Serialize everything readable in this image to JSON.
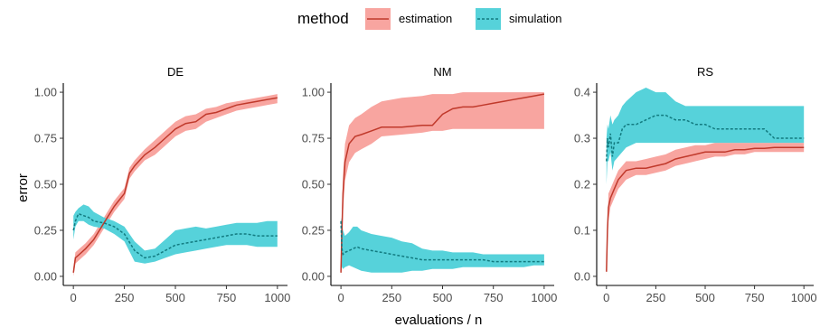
{
  "chart_data": {
    "type": "line",
    "ylabel": "error",
    "xlabel": "evaluations / n",
    "legend": {
      "title": "method",
      "placement": "top",
      "entries": [
        {
          "name": "estimation",
          "line_color": "#c0392b",
          "ribbon_color": "#f8a5a0",
          "dash": "solid"
        },
        {
          "name": "simulation",
          "line_color": "#127b80",
          "ribbon_color": "#56d2da",
          "dash": "dashed"
        }
      ]
    },
    "panels": [
      {
        "title": "DE",
        "xlim": [
          0,
          1000
        ],
        "ylim": [
          0,
          1.0
        ],
        "x_ticks": [
          0,
          250,
          500,
          750,
          1000
        ],
        "y_ticks": [
          0.0,
          0.25,
          0.5,
          0.75,
          1.0
        ],
        "y_tick_labels": [
          "0.00",
          "0.25",
          "0.50",
          "0.75",
          "1.00"
        ],
        "series": [
          {
            "name": "estimation",
            "x": [
              0,
              10,
              30,
              60,
              100,
              150,
              200,
              250,
              275,
              300,
              350,
              400,
              450,
              500,
              550,
              600,
              650,
              700,
              750,
              800,
              850,
              900,
              950,
              1000
            ],
            "y": [
              0.02,
              0.1,
              0.12,
              0.15,
              0.2,
              0.29,
              0.38,
              0.45,
              0.56,
              0.6,
              0.66,
              0.7,
              0.75,
              0.8,
              0.83,
              0.84,
              0.88,
              0.89,
              0.91,
              0.93,
              0.94,
              0.95,
              0.96,
              0.97
            ],
            "lower": [
              0.0,
              0.07,
              0.09,
              0.12,
              0.17,
              0.26,
              0.35,
              0.42,
              0.53,
              0.57,
              0.63,
              0.66,
              0.71,
              0.76,
              0.79,
              0.8,
              0.84,
              0.86,
              0.88,
              0.9,
              0.91,
              0.92,
              0.93,
              0.94
            ],
            "upper": [
              0.05,
              0.13,
              0.15,
              0.18,
              0.23,
              0.32,
              0.41,
              0.48,
              0.59,
              0.63,
              0.69,
              0.74,
              0.79,
              0.84,
              0.87,
              0.88,
              0.91,
              0.92,
              0.94,
              0.95,
              0.96,
              0.97,
              0.98,
              0.99
            ]
          },
          {
            "name": "simulation",
            "x": [
              0,
              10,
              25,
              50,
              75,
              100,
              150,
              200,
              250,
              300,
              350,
              400,
              450,
              500,
              550,
              600,
              650,
              700,
              750,
              800,
              850,
              900,
              950,
              1000
            ],
            "y": [
              0.25,
              0.3,
              0.34,
              0.33,
              0.32,
              0.3,
              0.29,
              0.27,
              0.23,
              0.14,
              0.1,
              0.11,
              0.14,
              0.17,
              0.18,
              0.19,
              0.2,
              0.21,
              0.22,
              0.23,
              0.23,
              0.22,
              0.22,
              0.22
            ],
            "lower": [
              0.2,
              0.27,
              0.3,
              0.3,
              0.28,
              0.27,
              0.26,
              0.23,
              0.19,
              0.08,
              0.07,
              0.08,
              0.1,
              0.12,
              0.13,
              0.14,
              0.15,
              0.16,
              0.17,
              0.17,
              0.17,
              0.16,
              0.16,
              0.16
            ],
            "upper": [
              0.33,
              0.35,
              0.37,
              0.39,
              0.38,
              0.35,
              0.32,
              0.3,
              0.27,
              0.19,
              0.14,
              0.15,
              0.2,
              0.25,
              0.26,
              0.27,
              0.26,
              0.27,
              0.28,
              0.29,
              0.29,
              0.29,
              0.3,
              0.3
            ]
          }
        ]
      },
      {
        "title": "NM",
        "xlim": [
          0,
          1000
        ],
        "ylim": [
          0,
          1.0
        ],
        "x_ticks": [
          0,
          250,
          500,
          750,
          1000
        ],
        "y_ticks": [
          0.0,
          0.25,
          0.5,
          0.75,
          1.0
        ],
        "y_tick_labels": [
          "0.00",
          "0.25",
          "0.50",
          "0.75",
          "1.00"
        ],
        "series": [
          {
            "name": "estimation",
            "x": [
              0,
              5,
              10,
              20,
              40,
              70,
              100,
              150,
              200,
              300,
              400,
              450,
              500,
              550,
              600,
              650,
              700,
              750,
              800,
              850,
              900,
              950,
              1000
            ],
            "y": [
              0.02,
              0.25,
              0.45,
              0.62,
              0.72,
              0.76,
              0.77,
              0.79,
              0.81,
              0.81,
              0.82,
              0.82,
              0.88,
              0.91,
              0.92,
              0.92,
              0.93,
              0.94,
              0.95,
              0.96,
              0.97,
              0.98,
              0.99
            ],
            "lower": [
              0.0,
              0.15,
              0.35,
              0.52,
              0.62,
              0.67,
              0.69,
              0.72,
              0.76,
              0.77,
              0.78,
              0.79,
              0.79,
              0.8,
              0.8,
              0.8,
              0.8,
              0.8,
              0.8,
              0.8,
              0.8,
              0.8,
              0.8
            ],
            "upper": [
              0.05,
              0.35,
              0.55,
              0.72,
              0.82,
              0.86,
              0.88,
              0.92,
              0.95,
              0.97,
              0.98,
              0.99,
              0.99,
              0.99,
              1.0,
              1.0,
              1.0,
              1.0,
              1.0,
              1.0,
              1.0,
              1.0,
              1.0
            ]
          },
          {
            "name": "simulation",
            "x": [
              0,
              5,
              10,
              20,
              40,
              60,
              80,
              100,
              150,
              200,
              250,
              300,
              350,
              400,
              450,
              500,
              550,
              600,
              650,
              700,
              750,
              800,
              850,
              900,
              950,
              1000
            ],
            "y": [
              0.3,
              0.15,
              0.12,
              0.13,
              0.14,
              0.15,
              0.16,
              0.15,
              0.14,
              0.13,
              0.12,
              0.11,
              0.1,
              0.09,
              0.09,
              0.09,
              0.09,
              0.09,
              0.09,
              0.09,
              0.08,
              0.08,
              0.08,
              0.08,
              0.08,
              0.08
            ],
            "lower": [
              0.1,
              0.05,
              0.04,
              0.05,
              0.06,
              0.05,
              0.04,
              0.03,
              0.02,
              0.02,
              0.02,
              0.02,
              0.03,
              0.03,
              0.04,
              0.04,
              0.04,
              0.05,
              0.05,
              0.05,
              0.05,
              0.05,
              0.05,
              0.05,
              0.06,
              0.06
            ],
            "upper": [
              0.32,
              0.28,
              0.25,
              0.22,
              0.24,
              0.27,
              0.27,
              0.25,
              0.23,
              0.22,
              0.21,
              0.19,
              0.18,
              0.15,
              0.14,
              0.14,
              0.13,
              0.13,
              0.13,
              0.12,
              0.12,
              0.12,
              0.12,
              0.12,
              0.12,
              0.12
            ]
          }
        ]
      },
      {
        "title": "RS",
        "xlim": [
          0,
          1000
        ],
        "ylim": [
          0,
          0.4
        ],
        "x_ticks": [
          0,
          250,
          500,
          750,
          1000
        ],
        "y_ticks": [
          0.0,
          0.1,
          0.2,
          0.3,
          0.4
        ],
        "y_tick_labels": [
          "0.0",
          "0.1",
          "0.2",
          "0.3",
          "0.4"
        ],
        "series": [
          {
            "name": "estimation",
            "x": [
              0,
              5,
              10,
              20,
              40,
              60,
              80,
              100,
              150,
              200,
              250,
              300,
              350,
              400,
              450,
              500,
              550,
              600,
              650,
              700,
              750,
              800,
              850,
              900,
              950,
              1000
            ],
            "y": [
              0.01,
              0.1,
              0.15,
              0.17,
              0.19,
              0.21,
              0.22,
              0.23,
              0.235,
              0.235,
              0.24,
              0.245,
              0.255,
              0.26,
              0.265,
              0.27,
              0.27,
              0.27,
              0.275,
              0.275,
              0.278,
              0.278,
              0.28,
              0.28,
              0.28,
              0.28
            ],
            "lower": [
              0.0,
              0.08,
              0.12,
              0.15,
              0.17,
              0.19,
              0.2,
              0.21,
              0.22,
              0.22,
              0.225,
              0.23,
              0.24,
              0.245,
              0.25,
              0.255,
              0.26,
              0.26,
              0.265,
              0.265,
              0.27,
              0.27,
              0.27,
              0.27,
              0.27,
              0.27
            ],
            "upper": [
              0.02,
              0.12,
              0.18,
              0.19,
              0.21,
              0.23,
              0.24,
              0.25,
              0.25,
              0.255,
              0.26,
              0.265,
              0.275,
              0.28,
              0.285,
              0.285,
              0.29,
              0.29,
              0.29,
              0.29,
              0.29,
              0.29,
              0.29,
              0.29,
              0.29,
              0.29
            ]
          },
          {
            "name": "simulation",
            "x": [
              0,
              5,
              10,
              20,
              30,
              40,
              60,
              80,
              100,
              150,
              200,
              250,
              300,
              350,
              400,
              450,
              500,
              550,
              600,
              650,
              700,
              750,
              800,
              850,
              900,
              950,
              1000
            ],
            "y": [
              0.25,
              0.3,
              0.28,
              0.31,
              0.26,
              0.29,
              0.29,
              0.32,
              0.33,
              0.33,
              0.34,
              0.35,
              0.35,
              0.34,
              0.34,
              0.33,
              0.33,
              0.32,
              0.32,
              0.32,
              0.32,
              0.32,
              0.32,
              0.3,
              0.3,
              0.3,
              0.3
            ],
            "lower": [
              0.2,
              0.25,
              0.25,
              0.27,
              0.23,
              0.25,
              0.26,
              0.27,
              0.28,
              0.29,
              0.29,
              0.29,
              0.29,
              0.29,
              0.29,
              0.29,
              0.29,
              0.29,
              0.29,
              0.29,
              0.29,
              0.29,
              0.29,
              0.29,
              0.29,
              0.29,
              0.29
            ],
            "upper": [
              0.3,
              0.33,
              0.32,
              0.35,
              0.33,
              0.34,
              0.35,
              0.37,
              0.38,
              0.4,
              0.41,
              0.4,
              0.4,
              0.38,
              0.37,
              0.37,
              0.37,
              0.37,
              0.37,
              0.37,
              0.37,
              0.37,
              0.37,
              0.37,
              0.37,
              0.37,
              0.37
            ]
          }
        ]
      }
    ]
  }
}
